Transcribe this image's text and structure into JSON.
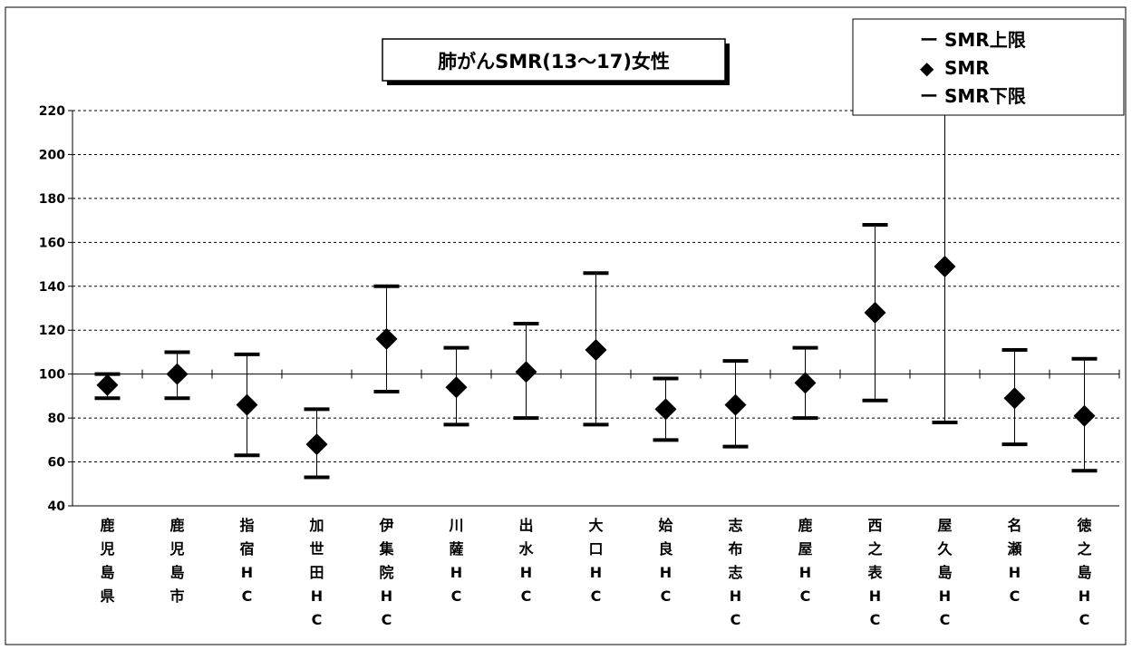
{
  "chart_data": {
    "type": "scatter",
    "title": "肺がんSMR(13～17)女性",
    "xlabel": "",
    "ylabel": "",
    "ylim": [
      40,
      220
    ],
    "yticks": [
      40,
      60,
      80,
      100,
      120,
      140,
      160,
      180,
      200,
      220
    ],
    "reference_line": 100,
    "grid": "horizontal-dashed",
    "legend_position": "top-right",
    "legend": [
      {
        "symbol": "ー",
        "label": "SMR上限"
      },
      {
        "symbol": "◆",
        "label": "SMR"
      },
      {
        "symbol": "ー",
        "label": "SMR下限"
      }
    ],
    "categories": [
      "鹿児島県",
      "鹿児島市",
      "指宿HC",
      "加世田HC",
      "伊集院HC",
      "川薩HC",
      "出水HC",
      "大口HC",
      "姶良HC",
      "志布志HC",
      "鹿屋HC",
      "西之表HC",
      "屋久島HC",
      "名瀬HC",
      "徳之島HC"
    ],
    "category_label_lines": [
      [
        "鹿",
        "児",
        "島",
        "県"
      ],
      [
        "鹿",
        "児",
        "島",
        "市"
      ],
      [
        "指",
        "宿",
        "H",
        "C"
      ],
      [
        "加",
        "世",
        "田",
        "H",
        "C"
      ],
      [
        "伊",
        "集",
        "院",
        "H",
        "C"
      ],
      [
        "川",
        "薩",
        "H",
        "C"
      ],
      [
        "出",
        "水",
        "H",
        "C"
      ],
      [
        "大",
        "口",
        "H",
        "C"
      ],
      [
        "姶",
        "良",
        "H",
        "C"
      ],
      [
        "志",
        "布",
        "志",
        "H",
        "C"
      ],
      [
        "鹿",
        "屋",
        "H",
        "C"
      ],
      [
        "西",
        "之",
        "表",
        "H",
        "C"
      ],
      [
        "屋",
        "久",
        "島",
        "H",
        "C"
      ],
      [
        "名",
        "瀬",
        "H",
        "C"
      ],
      [
        "徳",
        "之",
        "島",
        "H",
        "C"
      ]
    ],
    "series": [
      {
        "name": "SMR上限",
        "values": [
          100,
          110,
          109,
          84,
          140,
          112,
          123,
          146,
          98,
          106,
          112,
          168,
          220,
          111,
          107
        ]
      },
      {
        "name": "SMR",
        "values": [
          95,
          100,
          86,
          68,
          116,
          94,
          101,
          111,
          84,
          86,
          96,
          128,
          149,
          89,
          81
        ]
      },
      {
        "name": "SMR下限",
        "values": [
          89,
          89,
          63,
          53,
          92,
          77,
          80,
          77,
          70,
          67,
          80,
          88,
          78,
          68,
          56
        ]
      }
    ]
  }
}
